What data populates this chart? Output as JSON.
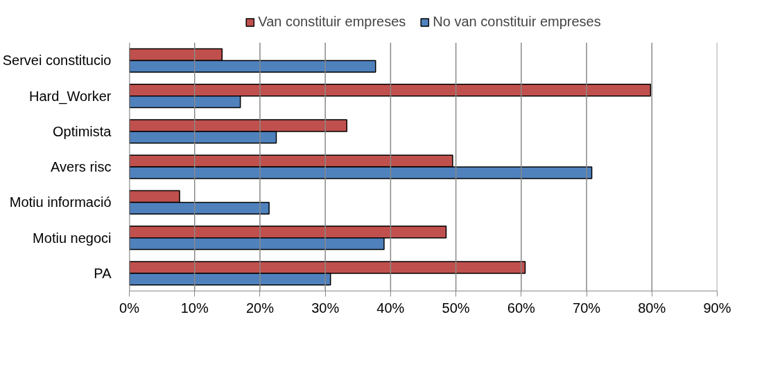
{
  "chart_data": {
    "type": "bar",
    "orientation": "horizontal",
    "categories": [
      "Servei constitucio",
      "Hard_Worker",
      "Optimista",
      "Avers risc",
      "Motiu informació",
      "Motiu negoci",
      "PA"
    ],
    "series": [
      {
        "name": "Van constituir empreses",
        "color": "#c0504d",
        "values": [
          14.2,
          79.8,
          33.3,
          49.5,
          7.7,
          48.5,
          60.6
        ]
      },
      {
        "name": "No van constituir empreses",
        "color": "#4f81bd",
        "values": [
          37.7,
          17.0,
          22.5,
          70.8,
          21.4,
          39.0,
          30.8
        ]
      }
    ],
    "xlim": [
      0,
      90
    ],
    "xticks": [
      {
        "value": 0,
        "label": "0%"
      },
      {
        "value": 10,
        "label": "10%"
      },
      {
        "value": 20,
        "label": "20%"
      },
      {
        "value": 30,
        "label": "30%"
      },
      {
        "value": 40,
        "label": "40%"
      },
      {
        "value": 50,
        "label": "50%"
      },
      {
        "value": 60,
        "label": "60%"
      },
      {
        "value": 70,
        "label": "70%"
      },
      {
        "value": 80,
        "label": "80%"
      },
      {
        "value": 90,
        "label": "90%"
      }
    ],
    "grid": "x",
    "legend": "top"
  }
}
